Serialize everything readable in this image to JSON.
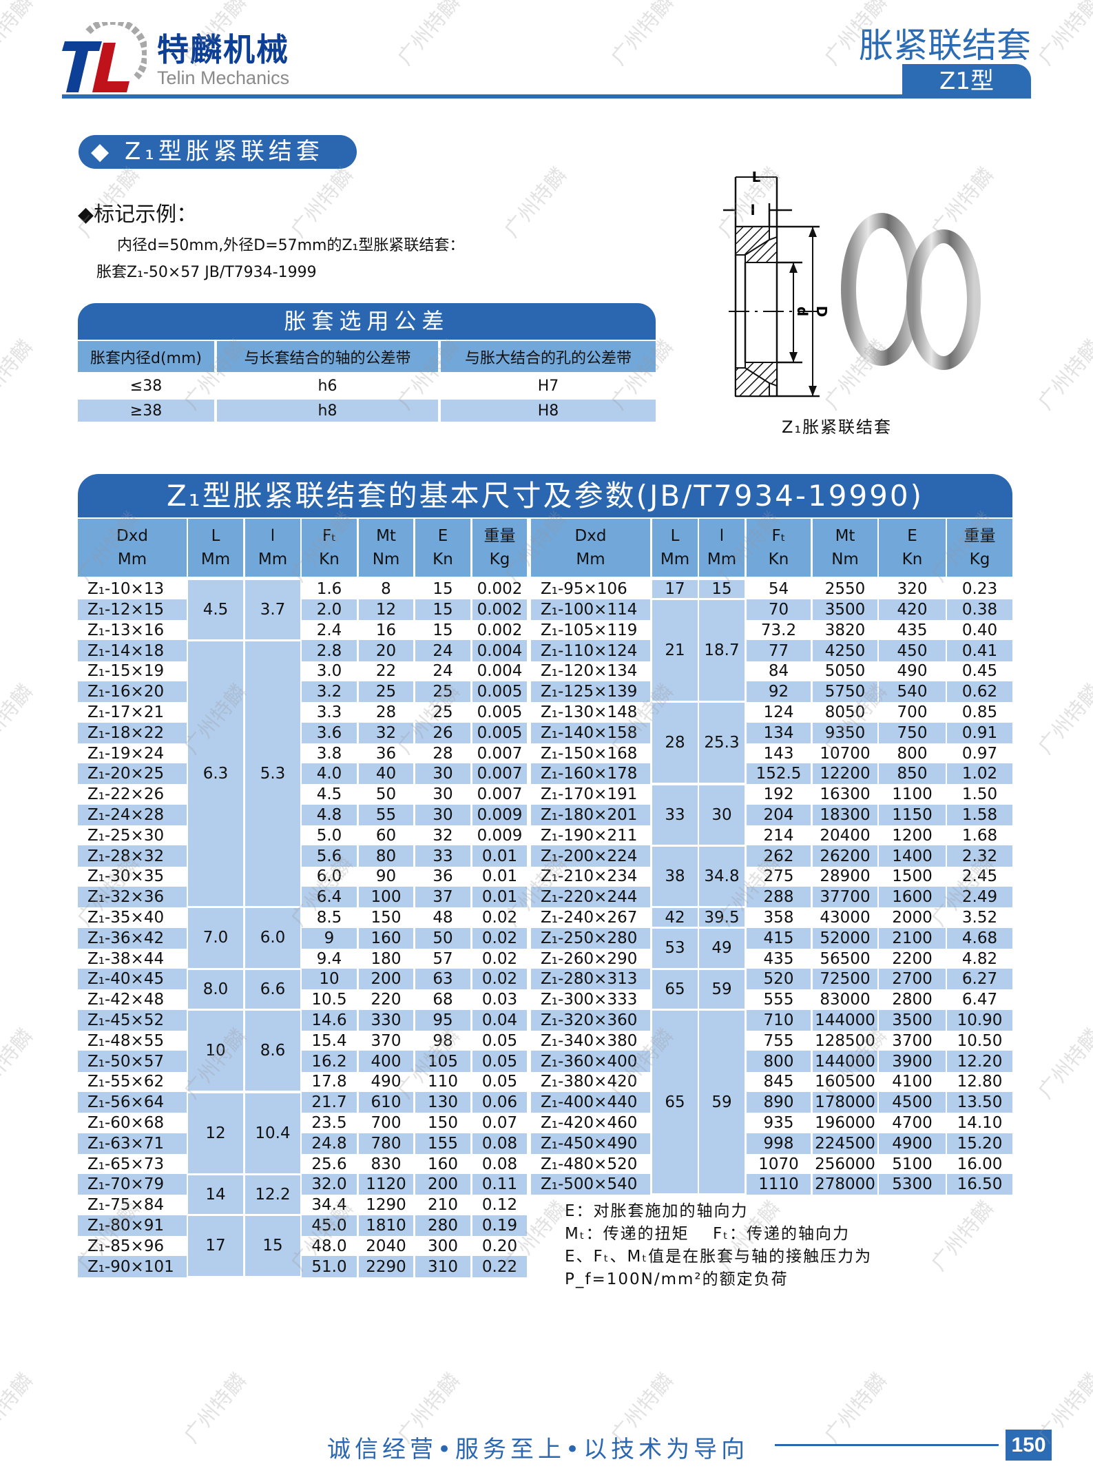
{
  "header": {
    "company_cn": "特麟机械",
    "company_en": "Telin Mechanics",
    "logo_text": "TL",
    "category": "胀紧联结套",
    "type_tab": "Z1型"
  },
  "section_title": "◆ Z₁型胀紧联结套",
  "marking": {
    "heading": "◆标记示例：",
    "line1": "内径d=50mm,外径D=57mm的Z₁型胀紧联结套：",
    "line2": "胀套Z₁-50×57 JB/T7934-1999"
  },
  "tolerance_table": {
    "title": "胀套选用公差",
    "headers": [
      "胀套内径d(mm)",
      "与长套结合的轴的公差带",
      "与胀大结合的孔的公差带"
    ],
    "rows": [
      [
        "≤38",
        "h6",
        "H7"
      ],
      [
        "≥38",
        "h8",
        "H8"
      ]
    ]
  },
  "figure": {
    "caption": "Z₁胀紧联结套",
    "labels": {
      "L": "L",
      "l": "l",
      "d": "d",
      "D": "D"
    }
  },
  "main_table": {
    "title": "Z₁型胀紧联结套的基本尺寸及参数(JB/T7934-19990)",
    "headers": [
      {
        "top": "Dxd",
        "bottom": "Mm"
      },
      {
        "top": "L",
        "bottom": "Mm"
      },
      {
        "top": "l",
        "bottom": "Mm"
      },
      {
        "top": "Fₜ",
        "bottom": "Kn"
      },
      {
        "top": "Mt",
        "bottom": "Nm"
      },
      {
        "top": "E",
        "bottom": "Kn"
      },
      {
        "top": "重量",
        "bottom": "Kg"
      }
    ],
    "left": {
      "groups": [
        {
          "L": "4.5",
          "l": "3.7",
          "span": 3
        },
        {
          "L": "6.3",
          "l": "5.3",
          "span": 13
        },
        {
          "L": "7.0",
          "l": "6.0",
          "span": 3
        },
        {
          "L": "8.0",
          "l": "6.6",
          "span": 2
        },
        {
          "L": "10",
          "l": "8.6",
          "span": 4
        },
        {
          "L": "12",
          "l": "10.4",
          "span": 4
        },
        {
          "L": "14",
          "l": "12.2",
          "span": 2
        },
        {
          "L": "17",
          "l": "15",
          "span": 3
        }
      ],
      "rows": [
        [
          "Z₁-10×13",
          "1.6",
          "8",
          "15",
          "0.002"
        ],
        [
          "Z₁-12×15",
          "2.0",
          "12",
          "15",
          "0.002"
        ],
        [
          "Z₁-13×16",
          "2.4",
          "16",
          "15",
          "0.002"
        ],
        [
          "Z₁-14×18",
          "2.8",
          "20",
          "24",
          "0.004"
        ],
        [
          "Z₁-15×19",
          "3.0",
          "22",
          "24",
          "0.004"
        ],
        [
          "Z₁-16×20",
          "3.2",
          "25",
          "25",
          "0.005"
        ],
        [
          "Z₁-17×21",
          "3.3",
          "28",
          "25",
          "0.005"
        ],
        [
          "Z₁-18×22",
          "3.6",
          "32",
          "26",
          "0.005"
        ],
        [
          "Z₁-19×24",
          "3.8",
          "36",
          "28",
          "0.007"
        ],
        [
          "Z₁-20×25",
          "4.0",
          "40",
          "30",
          "0.007"
        ],
        [
          "Z₁-22×26",
          "4.5",
          "50",
          "30",
          "0.007"
        ],
        [
          "Z₁-24×28",
          "4.8",
          "55",
          "30",
          "0.009"
        ],
        [
          "Z₁-25×30",
          "5.0",
          "60",
          "32",
          "0.009"
        ],
        [
          "Z₁-28×32",
          "5.6",
          "80",
          "33",
          "0.01"
        ],
        [
          "Z₁-30×35",
          "6.0",
          "90",
          "36",
          "0.01"
        ],
        [
          "Z₁-32×36",
          "6.4",
          "100",
          "37",
          "0.01"
        ],
        [
          "Z₁-35×40",
          "8.5",
          "150",
          "48",
          "0.02"
        ],
        [
          "Z₁-36×42",
          "9",
          "160",
          "50",
          "0.02"
        ],
        [
          "Z₁-38×44",
          "9.4",
          "180",
          "57",
          "0.02"
        ],
        [
          "Z₁-40×45",
          "10",
          "200",
          "63",
          "0.02"
        ],
        [
          "Z₁-42×48",
          "10.5",
          "220",
          "68",
          "0.03"
        ],
        [
          "Z₁-45×52",
          "14.6",
          "330",
          "95",
          "0.04"
        ],
        [
          "Z₁-48×55",
          "15.4",
          "370",
          "98",
          "0.05"
        ],
        [
          "Z₁-50×57",
          "16.2",
          "400",
          "105",
          "0.05"
        ],
        [
          "Z₁-55×62",
          "17.8",
          "490",
          "110",
          "0.05"
        ],
        [
          "Z₁-56×64",
          "21.7",
          "610",
          "130",
          "0.06"
        ],
        [
          "Z₁-60×68",
          "23.5",
          "700",
          "150",
          "0.07"
        ],
        [
          "Z₁-63×71",
          "24.8",
          "780",
          "155",
          "0.08"
        ],
        [
          "Z₁-65×73",
          "25.6",
          "830",
          "160",
          "0.08"
        ],
        [
          "Z₁-70×79",
          "32.0",
          "1120",
          "200",
          "0.11"
        ],
        [
          "Z₁-75×84",
          "34.4",
          "1290",
          "210",
          "0.12"
        ],
        [
          "Z₁-80×91",
          "45.0",
          "1810",
          "280",
          "0.19"
        ],
        [
          "Z₁-85×96",
          "48.0",
          "2040",
          "300",
          "0.20"
        ],
        [
          "Z₁-90×101",
          "51.0",
          "2290",
          "310",
          "0.22"
        ]
      ]
    },
    "right": {
      "groups": [
        {
          "L": "17",
          "l": "15",
          "span": 1
        },
        {
          "L": "21",
          "l": "18.7",
          "span": 5
        },
        {
          "L": "28",
          "l": "25.3",
          "span": 4
        },
        {
          "L": "33",
          "l": "30",
          "span": 3
        },
        {
          "L": "38",
          "l": "34.8",
          "span": 3
        },
        {
          "L": "42",
          "l": "39.5",
          "span": 1
        },
        {
          "L": "53",
          "l": "49",
          "span": 2
        },
        {
          "L": "65",
          "l": "59",
          "span": 2
        },
        {
          "L": "65",
          "l": "59",
          "span": 9
        }
      ],
      "rows": [
        [
          "Z₁-95×106",
          "54",
          "2550",
          "320",
          "0.23"
        ],
        [
          "Z₁-100×114",
          "70",
          "3500",
          "420",
          "0.38"
        ],
        [
          "Z₁-105×119",
          "73.2",
          "3820",
          "435",
          "0.40"
        ],
        [
          "Z₁-110×124",
          "77",
          "4250",
          "450",
          "0.41"
        ],
        [
          "Z₁-120×134",
          "84",
          "5050",
          "490",
          "0.45"
        ],
        [
          "Z₁-125×139",
          "92",
          "5750",
          "540",
          "0.62"
        ],
        [
          "Z₁-130×148",
          "124",
          "8050",
          "700",
          "0.85"
        ],
        [
          "Z₁-140×158",
          "134",
          "9350",
          "750",
          "0.91"
        ],
        [
          "Z₁-150×168",
          "143",
          "10700",
          "800",
          "0.97"
        ],
        [
          "Z₁-160×178",
          "152.5",
          "12200",
          "850",
          "1.02"
        ],
        [
          "Z₁-170×191",
          "192",
          "16300",
          "1100",
          "1.50"
        ],
        [
          "Z₁-180×201",
          "204",
          "18300",
          "1150",
          "1.58"
        ],
        [
          "Z₁-190×211",
          "214",
          "20400",
          "1200",
          "1.68"
        ],
        [
          "Z₁-200×224",
          "262",
          "26200",
          "1400",
          "2.32"
        ],
        [
          "Z₁-210×234",
          "275",
          "28900",
          "1500",
          "2.45"
        ],
        [
          "Z₁-220×244",
          "288",
          "37700",
          "1600",
          "2.49"
        ],
        [
          "Z₁-240×267",
          "358",
          "43000",
          "2000",
          "3.52"
        ],
        [
          "Z₁-250×280",
          "415",
          "52000",
          "2100",
          "4.68"
        ],
        [
          "Z₁-260×290",
          "435",
          "56500",
          "2200",
          "4.82"
        ],
        [
          "Z₁-280×313",
          "520",
          "72500",
          "2700",
          "6.27"
        ],
        [
          "Z₁-300×333",
          "555",
          "83000",
          "2800",
          "6.47"
        ],
        [
          "Z₁-320×360",
          "710",
          "144000",
          "3500",
          "10.90"
        ],
        [
          "Z₁-340×380",
          "755",
          "128500",
          "3700",
          "10.50"
        ],
        [
          "Z₁-360×400",
          "800",
          "144000",
          "3900",
          "12.20"
        ],
        [
          "Z₁-380×420",
          "845",
          "160500",
          "4100",
          "12.80"
        ],
        [
          "Z₁-400×440",
          "890",
          "178000",
          "4500",
          "13.50"
        ],
        [
          "Z₁-420×460",
          "935",
          "196000",
          "4700",
          "14.10"
        ],
        [
          "Z₁-450×490",
          "998",
          "224500",
          "4900",
          "15.20"
        ],
        [
          "Z₁-480×520",
          "1070",
          "256000",
          "5100",
          "16.00"
        ],
        [
          "Z₁-500×540",
          "1110",
          "278000",
          "5300",
          "16.50"
        ]
      ]
    }
  },
  "notes": [
    "E：对胀套施加的轴向力",
    "Mₜ：传递的扭矩　 Fₜ：传递的轴向力",
    "E、Fₜ、Mₜ值是在胀套与轴的接触压力为",
    "P_f=100N/mm²的额定负荷"
  ],
  "footer": {
    "slogan": "诚信经营•服务至上•以技术为导向",
    "page_number": "150"
  },
  "watermark": "广州特麟",
  "colors": {
    "brand_blue": "#2b67b1",
    "header_blue": "#72a7da",
    "stripe_blue": "#b3cdec",
    "logo_red": "#c0121b",
    "logo_blue": "#0d3f97"
  }
}
